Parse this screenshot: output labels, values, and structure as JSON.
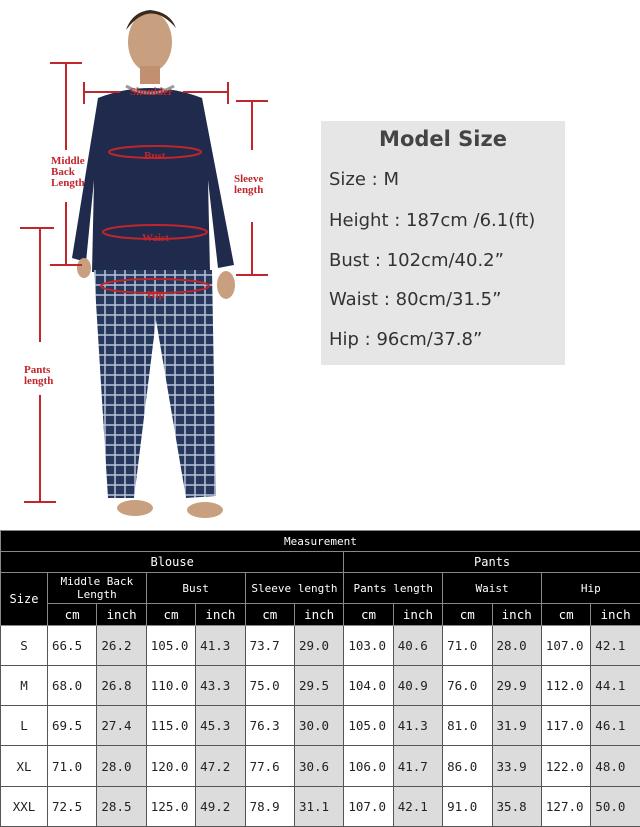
{
  "figure": {
    "labels": {
      "shoulder": "Shoulder",
      "bust": "Bust",
      "middle_back": "Middle Back Length",
      "sleeve": "Sleeve length",
      "waist": "Waist",
      "hip": "Hip",
      "pants": "Pants length"
    },
    "accent": "#c0262c",
    "shirt_color": "#1f2a4d"
  },
  "model_size": {
    "title": "Model Size",
    "rows": [
      "Size :  M",
      "Height :  187cm /6.1(ft)",
      "Bust : 102cm/40.2”",
      "Waist : 80cm/31.5”",
      "Hip : 96cm/37.8”"
    ]
  },
  "table": {
    "title": "Measurement",
    "groups": [
      "Blouse",
      "Pants"
    ],
    "size_header": "Size",
    "measures": [
      "Middle Back Length",
      "Bust",
      "Sleeve length",
      "Pants length",
      "Waist",
      "Hip"
    ],
    "units": [
      "cm",
      "inch"
    ],
    "rows": [
      [
        "S",
        "66.5",
        "26.2",
        "105.0",
        "41.3",
        "73.7",
        "29.0",
        "103.0",
        "40.6",
        "71.0",
        "28.0",
        "107.0",
        "42.1"
      ],
      [
        "M",
        "68.0",
        "26.8",
        "110.0",
        "43.3",
        "75.0",
        "29.5",
        "104.0",
        "40.9",
        "76.0",
        "29.9",
        "112.0",
        "44.1"
      ],
      [
        "L",
        "69.5",
        "27.4",
        "115.0",
        "45.3",
        "76.3",
        "30.0",
        "105.0",
        "41.3",
        "81.0",
        "31.9",
        "117.0",
        "46.1"
      ],
      [
        "XL",
        "71.0",
        "28.0",
        "120.0",
        "47.2",
        "77.6",
        "30.6",
        "106.0",
        "41.7",
        "86.0",
        "33.9",
        "122.0",
        "48.0"
      ],
      [
        "XXL",
        "72.5",
        "28.5",
        "125.0",
        "49.2",
        "78.9",
        "31.1",
        "107.0",
        "42.1",
        "91.0",
        "35.8",
        "127.0",
        "50.0"
      ]
    ]
  }
}
